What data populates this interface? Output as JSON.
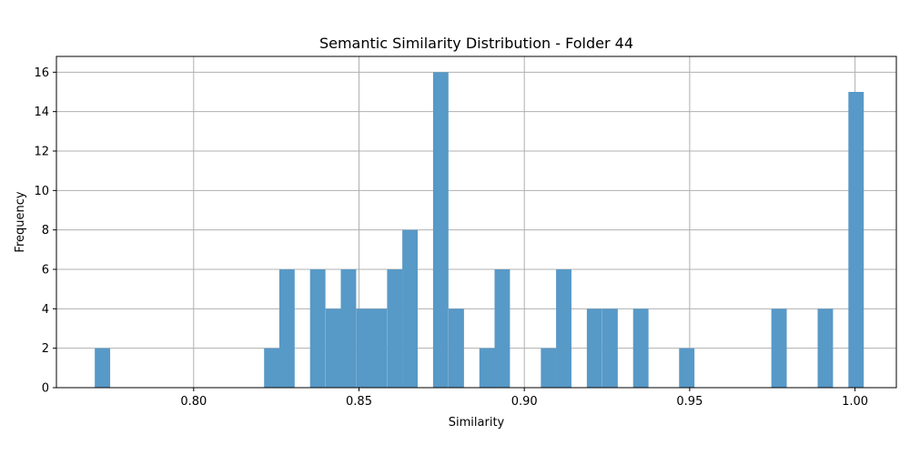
{
  "chart_data": {
    "type": "bar",
    "title": "Semantic Similarity Distribution - Folder 44",
    "xlabel": "Similarity",
    "ylabel": "Frequency",
    "xlim": [
      0.7585,
      1.0125
    ],
    "ylim": [
      0,
      16.8
    ],
    "bin_width": 0.00465,
    "grid": true,
    "bar_color": "#5799c7",
    "grid_color": "#b0b0b0",
    "x_ticks": [
      {
        "value": 0.8,
        "label": "0.80"
      },
      {
        "value": 0.85,
        "label": "0.85"
      },
      {
        "value": 0.9,
        "label": "0.90"
      },
      {
        "value": 0.95,
        "label": "0.95"
      },
      {
        "value": 1.0,
        "label": "1.00"
      }
    ],
    "y_ticks": [
      {
        "value": 0,
        "label": "0"
      },
      {
        "value": 2,
        "label": "2"
      },
      {
        "value": 4,
        "label": "4"
      },
      {
        "value": 6,
        "label": "6"
      },
      {
        "value": 8,
        "label": "8"
      },
      {
        "value": 10,
        "label": "10"
      },
      {
        "value": 12,
        "label": "12"
      },
      {
        "value": 14,
        "label": "14"
      },
      {
        "value": 16,
        "label": "16"
      }
    ],
    "bins": [
      {
        "start": 0.7701,
        "value": 2
      },
      {
        "start": 0.8213,
        "value": 2
      },
      {
        "start": 0.8259,
        "value": 6
      },
      {
        "start": 0.8352,
        "value": 6
      },
      {
        "start": 0.8399,
        "value": 4
      },
      {
        "start": 0.8445,
        "value": 6
      },
      {
        "start": 0.8492,
        "value": 4
      },
      {
        "start": 0.8538,
        "value": 4
      },
      {
        "start": 0.8585,
        "value": 6
      },
      {
        "start": 0.8631,
        "value": 8
      },
      {
        "start": 0.8724,
        "value": 16
      },
      {
        "start": 0.8771,
        "value": 4
      },
      {
        "start": 0.8864,
        "value": 2
      },
      {
        "start": 0.891,
        "value": 6
      },
      {
        "start": 0.905,
        "value": 2
      },
      {
        "start": 0.9096,
        "value": 6
      },
      {
        "start": 0.9189,
        "value": 4
      },
      {
        "start": 0.9236,
        "value": 4
      },
      {
        "start": 0.9329,
        "value": 4
      },
      {
        "start": 0.9468,
        "value": 2
      },
      {
        "start": 0.9747,
        "value": 4
      },
      {
        "start": 0.9887,
        "value": 4
      },
      {
        "start": 0.998,
        "value": 15
      }
    ]
  }
}
